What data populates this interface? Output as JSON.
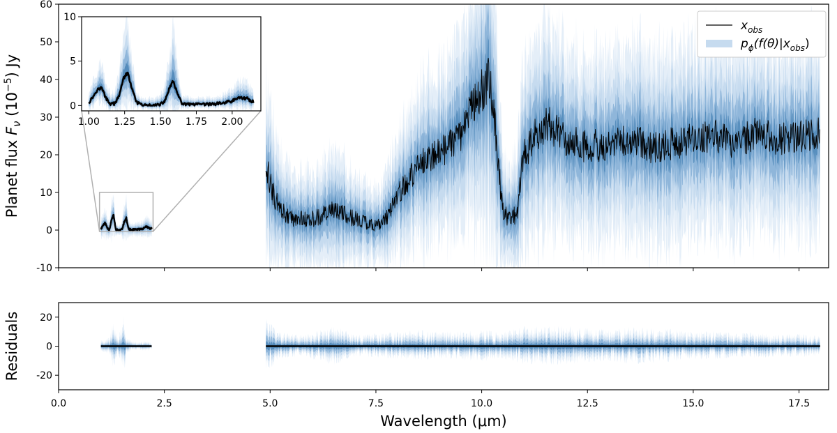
{
  "chart_data": [
    {
      "id": "main",
      "type": "line",
      "xlabel": "Wavelength (μm)",
      "ylabel": "Planet flux F_ν (10^-5) Jy",
      "ylabel_text": {
        "prefix": "Planet flux ",
        "symbol": "F",
        "sub": "ν",
        "mid": " (10",
        "sup": "−5",
        "suffix": ") Jy"
      },
      "xlim": [
        0.0,
        18.2
      ],
      "ylim": [
        -10,
        60
      ],
      "yticks": [
        -10,
        0,
        10,
        20,
        30,
        40,
        50,
        60
      ],
      "grid": false,
      "legend_position": "top-right",
      "legend": [
        {
          "name": "x_obs",
          "label": {
            "base": "x",
            "sub": "obs"
          },
          "kind": "line",
          "color": "#000000"
        },
        {
          "name": "posterior",
          "label": {
            "p": "p",
            "phi": "ϕ",
            "rest": "(f(θ)|x",
            "sub": "obs",
            "close": ")"
          },
          "kind": "band",
          "color": "#c6dbef"
        }
      ],
      "segments": [
        {
          "name": "nir",
          "range": [
            1.0,
            2.2
          ],
          "x": [
            1.0,
            1.05,
            1.1,
            1.15,
            1.2,
            1.25,
            1.3,
            1.35,
            1.4,
            1.45,
            1.5,
            1.55,
            1.6,
            1.65,
            1.7,
            1.8,
            1.9,
            2.0,
            2.05,
            2.1,
            2.15,
            2.2
          ],
          "y": [
            0.3,
            1.3,
            1.9,
            0.6,
            0.1,
            2.7,
            4.0,
            0.2,
            0.0,
            0.0,
            0.2,
            2.2,
            3.2,
            0.4,
            0.1,
            0.1,
            0.2,
            0.4,
            0.9,
            0.8,
            0.5,
            0.4
          ],
          "spread": [
            0.8,
            1.0,
            1.2,
            0.9,
            0.6,
            1.6,
            1.8,
            0.6,
            0.4,
            0.4,
            0.6,
            1.6,
            1.8,
            0.7,
            0.5,
            0.5,
            0.6,
            0.6,
            0.8,
            0.8,
            0.7,
            0.6
          ]
        },
        {
          "name": "mir",
          "range": [
            4.9,
            18.0
          ],
          "x": [
            4.9,
            5.0,
            5.2,
            5.5,
            6.0,
            6.5,
            7.0,
            7.5,
            7.8,
            8.0,
            8.3,
            8.6,
            8.9,
            9.2,
            9.5,
            9.8,
            10.0,
            10.2,
            10.35,
            10.5,
            10.7,
            10.85,
            11.0,
            11.3,
            11.6,
            12.0,
            12.5,
            13.0,
            13.5,
            14.0,
            14.5,
            15.0,
            15.5,
            16.0,
            16.5,
            17.0,
            17.5,
            18.0
          ],
          "y": [
            18,
            12,
            6,
            3,
            3,
            5,
            3,
            1,
            4,
            9,
            14,
            18,
            20,
            22,
            25,
            33,
            37,
            40,
            22,
            5,
            2,
            6,
            20,
            26,
            28,
            24,
            22,
            23,
            24,
            22,
            23,
            24,
            25,
            23,
            26,
            24,
            25,
            26
          ],
          "spread": [
            8,
            7,
            5,
            4,
            4,
            5,
            4,
            3,
            4,
            5,
            6,
            7,
            7,
            8,
            8,
            10,
            12,
            13,
            10,
            5,
            4,
            6,
            8,
            9,
            9,
            8,
            8,
            8,
            8,
            8,
            8,
            8,
            8,
            8,
            8,
            8,
            8,
            8
          ]
        }
      ],
      "zoom_box": {
        "x_range": [
          1.0,
          2.2
        ],
        "y_range": [
          0,
          10
        ]
      }
    },
    {
      "id": "inset",
      "type": "line",
      "xlim": [
        0.95,
        2.2
      ],
      "ylim": [
        -0.6,
        10
      ],
      "xticks": [
        1.0,
        1.25,
        1.5,
        1.75,
        2.0
      ],
      "xtick_labels": [
        "1.00",
        "1.25",
        "1.50",
        "1.75",
        "2.00"
      ],
      "yticks": [
        0,
        5,
        10
      ],
      "x": [
        1.0,
        1.03,
        1.06,
        1.09,
        1.12,
        1.15,
        1.18,
        1.21,
        1.24,
        1.27,
        1.3,
        1.33,
        1.36,
        1.4,
        1.45,
        1.5,
        1.53,
        1.56,
        1.59,
        1.62,
        1.65,
        1.7,
        1.8,
        1.9,
        2.0,
        2.05,
        2.1,
        2.15
      ],
      "y": [
        0.3,
        1.0,
        1.8,
        2.0,
        0.8,
        0.2,
        0.2,
        1.0,
        3.0,
        3.7,
        2.0,
        0.4,
        0.1,
        0.0,
        0.0,
        0.1,
        0.5,
        1.8,
        2.8,
        1.2,
        0.2,
        0.1,
        0.1,
        0.2,
        0.5,
        0.9,
        0.8,
        0.4
      ],
      "spread": [
        0.6,
        0.8,
        1.0,
        1.2,
        0.8,
        0.5,
        0.5,
        1.0,
        2.0,
        2.5,
        1.5,
        0.5,
        0.3,
        0.3,
        0.3,
        0.4,
        0.8,
        1.6,
        2.5,
        1.2,
        0.4,
        0.3,
        0.3,
        0.3,
        0.6,
        0.8,
        0.8,
        0.6
      ]
    },
    {
      "id": "residuals",
      "type": "line",
      "xlabel": "Wavelength (μm)",
      "ylabel": "Residuals",
      "xlim": [
        0.0,
        18.2
      ],
      "ylim": [
        -30,
        30
      ],
      "xticks": [
        0.0,
        2.5,
        5.0,
        7.5,
        10.0,
        12.5,
        15.0,
        17.5
      ],
      "xtick_labels": [
        "0.0",
        "2.5",
        "5.0",
        "7.5",
        "10.0",
        "12.5",
        "15.0",
        "17.5"
      ],
      "yticks": [
        -20,
        0,
        20
      ],
      "segments": [
        {
          "name": "nir",
          "range": [
            1.0,
            2.2
          ],
          "x": [
            1.0,
            1.2,
            1.3,
            1.4,
            1.55,
            1.6,
            1.8,
            2.0,
            2.2
          ],
          "spread": [
            4,
            6,
            18,
            5,
            22,
            6,
            3,
            4,
            3
          ]
        },
        {
          "name": "mir",
          "range": [
            4.9,
            18.0
          ],
          "x": [
            4.9,
            5.2,
            5.8,
            6.5,
            7.0,
            7.5,
            8.0,
            8.5,
            9.0,
            9.5,
            10.0,
            10.5,
            11.0,
            11.5,
            12.0,
            12.5,
            13.0,
            13.5,
            14.0,
            14.5,
            15.0,
            15.5,
            16.0,
            16.5,
            17.0,
            17.5,
            18.0
          ],
          "spread": [
            22,
            10,
            8,
            15,
            8,
            9,
            10,
            12,
            10,
            11,
            12,
            10,
            14,
            15,
            14,
            13,
            12,
            14,
            13,
            12,
            10,
            11,
            9,
            10,
            8,
            9,
            8
          ]
        }
      ],
      "zero_line": 0
    }
  ]
}
